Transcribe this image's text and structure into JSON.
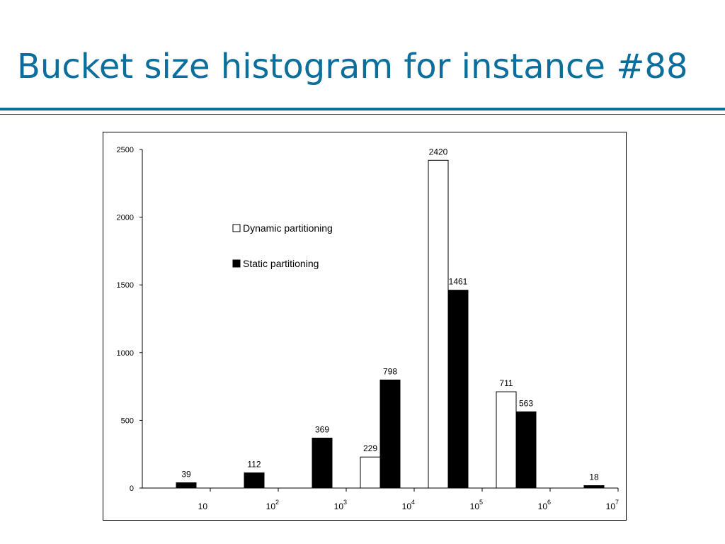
{
  "slide": {
    "title": "Bucket size histogram for instance #88"
  },
  "chart_data": {
    "type": "bar",
    "title": "",
    "xlabel": "",
    "ylabel": "",
    "ylim": [
      0,
      2500
    ],
    "yticks": [
      0,
      500,
      1000,
      1500,
      2000,
      2500
    ],
    "x_scale": "log",
    "xtick_labels": [
      {
        "base": "10",
        "exp": ""
      },
      {
        "base": "10",
        "exp": "2"
      },
      {
        "base": "10",
        "exp": "3"
      },
      {
        "base": "10",
        "exp": "4"
      },
      {
        "base": "10",
        "exp": "5"
      },
      {
        "base": "10",
        "exp": "6"
      },
      {
        "base": "10",
        "exp": "7"
      }
    ],
    "categories": [
      "1–10",
      "10–10^2",
      "10^2–10^3",
      "10^3–10^4",
      "10^4–10^5",
      "10^5–10^6",
      "10^6–10^7"
    ],
    "series": [
      {
        "name": "Dynamic partitioning",
        "fill": "#ffffff",
        "values": [
          null,
          null,
          null,
          229,
          2420,
          711,
          null
        ]
      },
      {
        "name": "Static partitioning",
        "fill": "#000000",
        "values": [
          39,
          112,
          369,
          798,
          1461,
          563,
          18
        ]
      }
    ],
    "legend_position": "upper-left",
    "grid": false,
    "colors": {
      "axis": "#000000",
      "title": "#0b6e9c"
    }
  }
}
